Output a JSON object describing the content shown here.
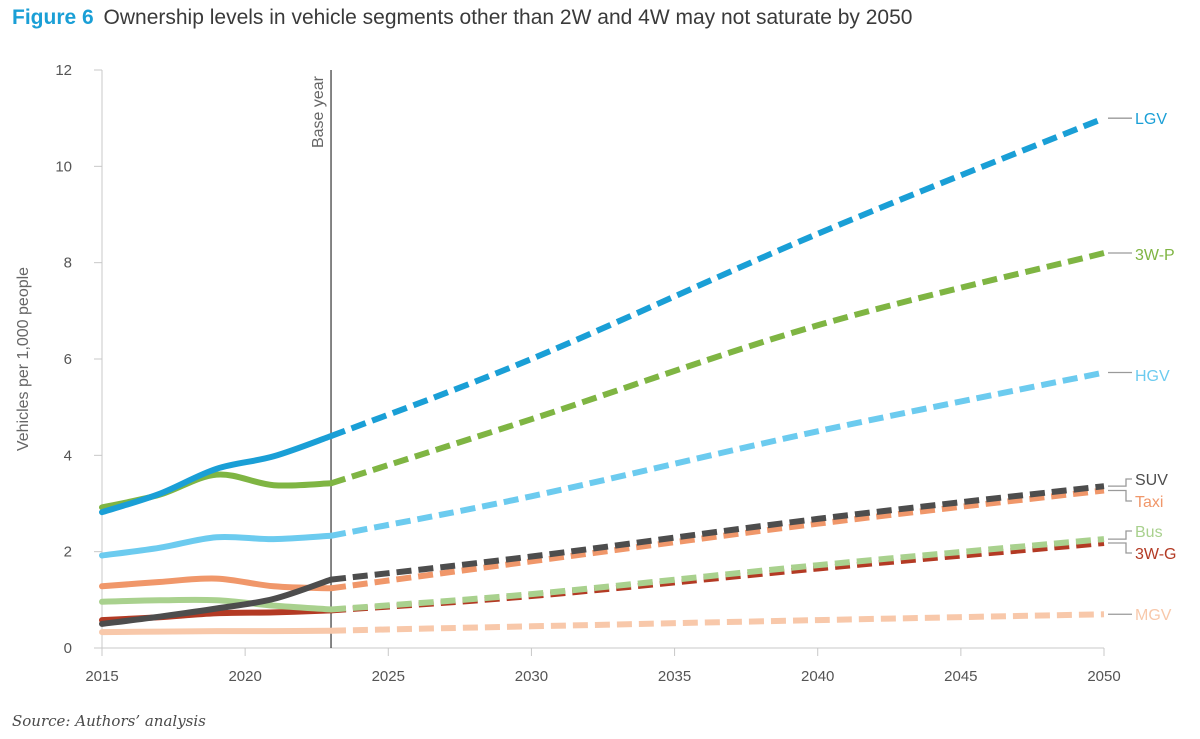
{
  "figure_label": "Figure 6",
  "figure_title": "Ownership levels in vehicle segments other than 2W and 4W may not saturate by 2050",
  "source": "Source: Authors’ analysis",
  "chart_data": {
    "type": "line",
    "title": "Ownership levels in vehicle segments other than 2W and 4W may not saturate by 2050",
    "xlabel": "",
    "ylabel": "Vehicles per 1,000 people",
    "xlim": [
      2015,
      2050
    ],
    "ylim": [
      0,
      12
    ],
    "x_ticks": [
      2015,
      2020,
      2025,
      2030,
      2035,
      2040,
      2045,
      2050
    ],
    "y_ticks": [
      0,
      2,
      4,
      6,
      8,
      10,
      12
    ],
    "grid": false,
    "base_year": 2023,
    "base_year_label": "Base year",
    "historical_style": "solid",
    "projection_style": "dashed",
    "series": [
      {
        "name": "LGV",
        "color": "#1a9fd6",
        "historical": {
          "x": [
            2015,
            2017,
            2019,
            2021,
            2023
          ],
          "y": [
            2.82,
            3.2,
            3.72,
            3.98,
            4.4
          ]
        },
        "projection": {
          "x": [
            2023,
            2030,
            2040,
            2050
          ],
          "y": [
            4.4,
            6.0,
            8.6,
            11.0
          ]
        }
      },
      {
        "name": "3W-P",
        "color": "#7fb543",
        "historical": {
          "x": [
            2015,
            2017,
            2019,
            2021,
            2023
          ],
          "y": [
            2.92,
            3.18,
            3.6,
            3.38,
            3.42
          ]
        },
        "projection": {
          "x": [
            2023,
            2030,
            2040,
            2050
          ],
          "y": [
            3.42,
            4.75,
            6.7,
            8.2
          ]
        }
      },
      {
        "name": "HGV",
        "color": "#6ccbef",
        "historical": {
          "x": [
            2015,
            2017,
            2019,
            2021,
            2023
          ],
          "y": [
            1.92,
            2.08,
            2.3,
            2.26,
            2.33
          ]
        },
        "projection": {
          "x": [
            2023,
            2030,
            2040,
            2050
          ],
          "y": [
            2.33,
            3.15,
            4.5,
            5.72
          ]
        }
      },
      {
        "name": "SUV",
        "color": "#4d4d4d",
        "historical": {
          "x": [
            2015,
            2017,
            2019,
            2021,
            2023
          ],
          "y": [
            0.5,
            0.65,
            0.82,
            1.02,
            1.42
          ]
        },
        "projection": {
          "x": [
            2023,
            2030,
            2040,
            2050
          ],
          "y": [
            1.42,
            1.9,
            2.68,
            3.36
          ]
        }
      },
      {
        "name": "Taxi",
        "color": "#f0976a",
        "historical": {
          "x": [
            2015,
            2017,
            2019,
            2021,
            2023
          ],
          "y": [
            1.28,
            1.37,
            1.44,
            1.28,
            1.24
          ]
        },
        "projection": {
          "x": [
            2023,
            2030,
            2040,
            2050
          ],
          "y": [
            1.24,
            1.8,
            2.58,
            3.27
          ]
        }
      },
      {
        "name": "Bus",
        "color": "#a9d18e",
        "historical": {
          "x": [
            2015,
            2017,
            2019,
            2021,
            2023
          ],
          "y": [
            0.96,
            0.99,
            0.99,
            0.88,
            0.8
          ]
        },
        "projection": {
          "x": [
            2023,
            2030,
            2040,
            2050
          ],
          "y": [
            0.8,
            1.12,
            1.72,
            2.26
          ]
        }
      },
      {
        "name": "3W-G",
        "color": "#b33a24",
        "historical": {
          "x": [
            2015,
            2017,
            2019,
            2021,
            2023
          ],
          "y": [
            0.58,
            0.64,
            0.72,
            0.74,
            0.78
          ]
        },
        "projection": {
          "x": [
            2023,
            2030,
            2040,
            2050
          ],
          "y": [
            0.78,
            1.08,
            1.65,
            2.18
          ]
        }
      },
      {
        "name": "MGV",
        "color": "#f8c8aa",
        "historical": {
          "x": [
            2015,
            2017,
            2019,
            2021,
            2023
          ],
          "y": [
            0.33,
            0.34,
            0.35,
            0.35,
            0.36
          ]
        },
        "projection": {
          "x": [
            2023,
            2030,
            2040,
            2050
          ],
          "y": [
            0.36,
            0.45,
            0.58,
            0.7
          ]
        }
      }
    ]
  }
}
